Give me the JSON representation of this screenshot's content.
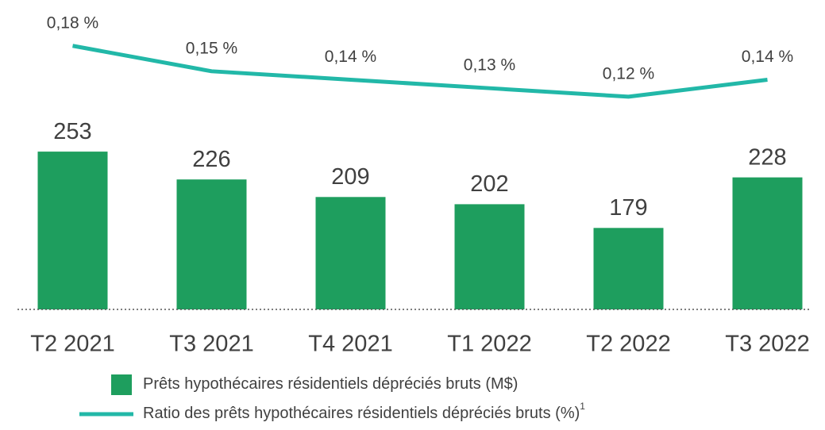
{
  "chart_data": {
    "type": "bar_line",
    "categories": [
      "T2 2021",
      "T3 2021",
      "T4 2021",
      "T1 2022",
      "T2 2022",
      "T3 2022"
    ],
    "ylim": [
      100,
      400
    ],
    "y2lim": [
      0.06,
      0.22
    ],
    "baseline_style": "dotted",
    "series": [
      {
        "name": "Prêts hypothécaires résidentiels dépréciés bruts (M$)",
        "type": "bar",
        "color": "#1e9e5e",
        "values": [
          253,
          226,
          209,
          202,
          179,
          228
        ]
      },
      {
        "name": "Ratio des prêts hypothécaires résidentiels dépréciés bruts (%)",
        "name_superscript": "1",
        "type": "line",
        "axis": "y2",
        "color": "#22b8a8",
        "values": [
          0.18,
          0.15,
          0.14,
          0.13,
          0.12,
          0.14
        ],
        "value_labels": [
          "0,18 %",
          "0,15 %",
          "0,14 %",
          "0,13 %",
          "0,12 %",
          "0,14 %"
        ]
      }
    ]
  }
}
